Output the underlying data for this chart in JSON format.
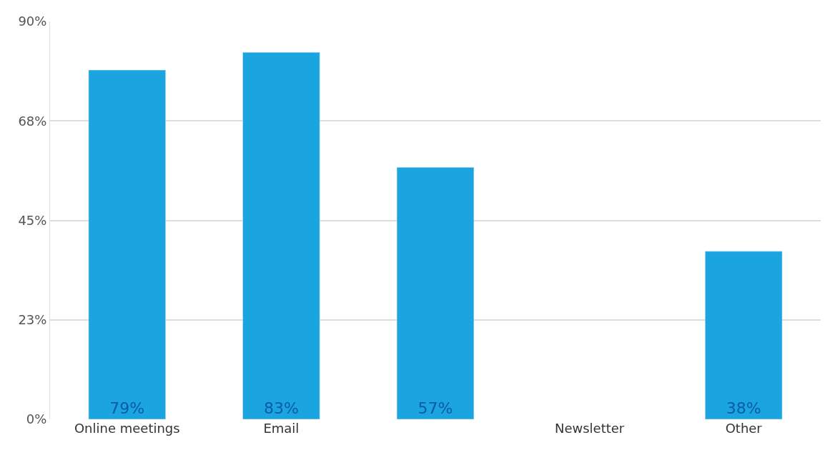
{
  "chart_data": {
    "type": "bar",
    "categories": [
      "Online meetings",
      "Email",
      null,
      "Newsletter",
      "Other"
    ],
    "values": [
      79,
      83,
      57,
      null,
      38
    ],
    "value_labels": [
      "79%",
      "83%",
      "57%",
      null,
      "38%"
    ],
    "color": "#1aa5e0",
    "ylim": [
      0,
      90
    ],
    "yticks": [
      {
        "value": 0,
        "label": "0%"
      },
      {
        "value": 22.5,
        "label": "23%"
      },
      {
        "value": 45,
        "label": "45%"
      },
      {
        "value": 67.5,
        "label": "68%"
      },
      {
        "value": 90,
        "label": "90%"
      }
    ],
    "grid": "y",
    "legend": false
  }
}
